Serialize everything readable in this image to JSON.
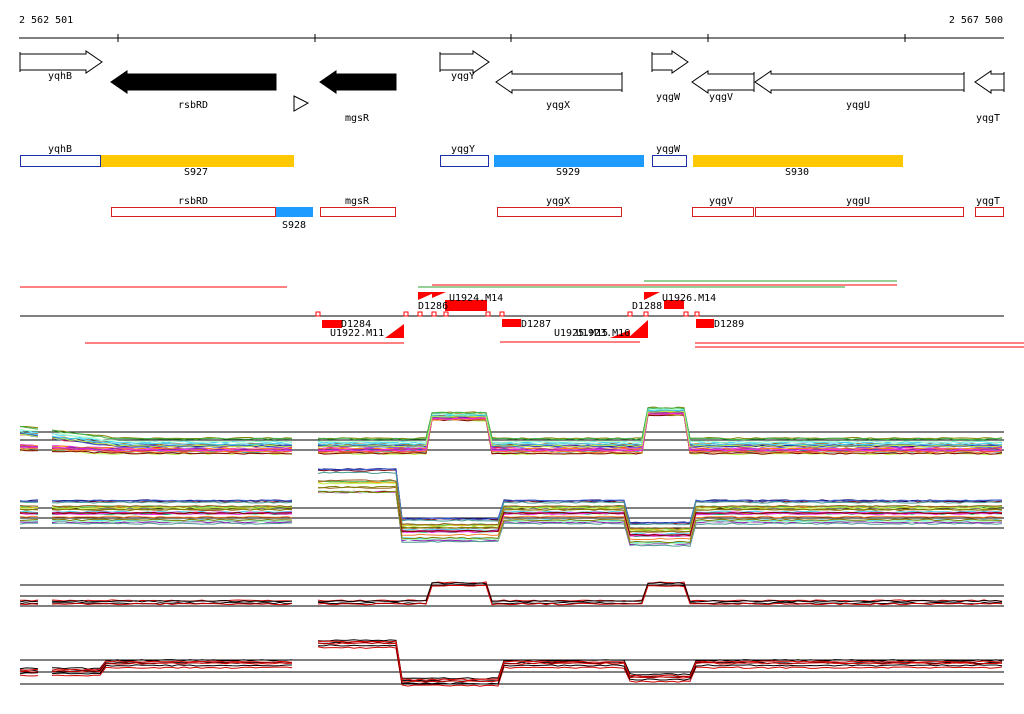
{
  "ruler": {
    "start_label": "2 562 501",
    "end_label": "2 567 500"
  },
  "genes": [
    {
      "name": "yqhB",
      "strand": "+",
      "fill": "white"
    },
    {
      "name": "rsbRD",
      "strand": "-",
      "fill": "black"
    },
    {
      "name": "mgsR",
      "strand": "-",
      "fill": "black"
    },
    {
      "name": "yqgY",
      "strand": "+",
      "fill": "white"
    },
    {
      "name": "yqgX",
      "strand": "-",
      "fill": "white"
    },
    {
      "name": "yqgW",
      "strand": "+",
      "fill": "white"
    },
    {
      "name": "yqgV",
      "strand": "-",
      "fill": "white"
    },
    {
      "name": "yqgU",
      "strand": "-",
      "fill": "white"
    },
    {
      "name": "yqgT",
      "strand": "-",
      "fill": "white"
    }
  ],
  "segments_top": [
    {
      "label": "yqhB",
      "color": "#1a2fa8",
      "filled": false
    },
    {
      "label": "S927",
      "color": "#ffc800",
      "filled": true
    },
    {
      "label": "yqgY",
      "color": "#1a2fa8",
      "filled": false
    },
    {
      "label": "S929",
      "color": "#1e9bff",
      "filled": true
    },
    {
      "label": "yqgW",
      "color": "#1a2fa8",
      "filled": false
    },
    {
      "label": "S930",
      "color": "#ffc800",
      "filled": true
    }
  ],
  "segments_bottom": [
    {
      "label": "rsbRD",
      "color": "#d42020",
      "filled": false
    },
    {
      "label": "S928",
      "color": "#1e9bff",
      "filled": true
    },
    {
      "label": "mgsR",
      "color": "#d42020",
      "filled": false
    },
    {
      "label": "yqgX",
      "color": "#d42020",
      "filled": false
    },
    {
      "label": "yqgV",
      "color": "#d42020",
      "filled": false
    },
    {
      "label": "yqgU",
      "color": "#d42020",
      "filled": false
    },
    {
      "label": "yqgT",
      "color": "#d42020",
      "filled": false
    }
  ],
  "features": {
    "labels": [
      "D1284",
      "U1922.M11",
      "D1286",
      "U1924.M14",
      "D1287",
      "U1925.M15",
      "U1923.M16",
      "D1288",
      "U1926.M14",
      "D1289"
    ]
  },
  "profiles": {
    "panels": [
      "expression-panel-1",
      "expression-panel-2",
      "expression-panel-3",
      "expression-panel-4"
    ],
    "palette": [
      "#e6194b",
      "#3cb44b",
      "#4363d8",
      "#f58231",
      "#911eb4",
      "#42d4f4",
      "#f032e6",
      "#bfef45",
      "#469990",
      "#9A6324",
      "#800000",
      "#aaffc3",
      "#808000",
      "#000075",
      "#ff8c00",
      "#00a86b"
    ],
    "summary_colors": [
      "#000000",
      "#d40000"
    ]
  }
}
